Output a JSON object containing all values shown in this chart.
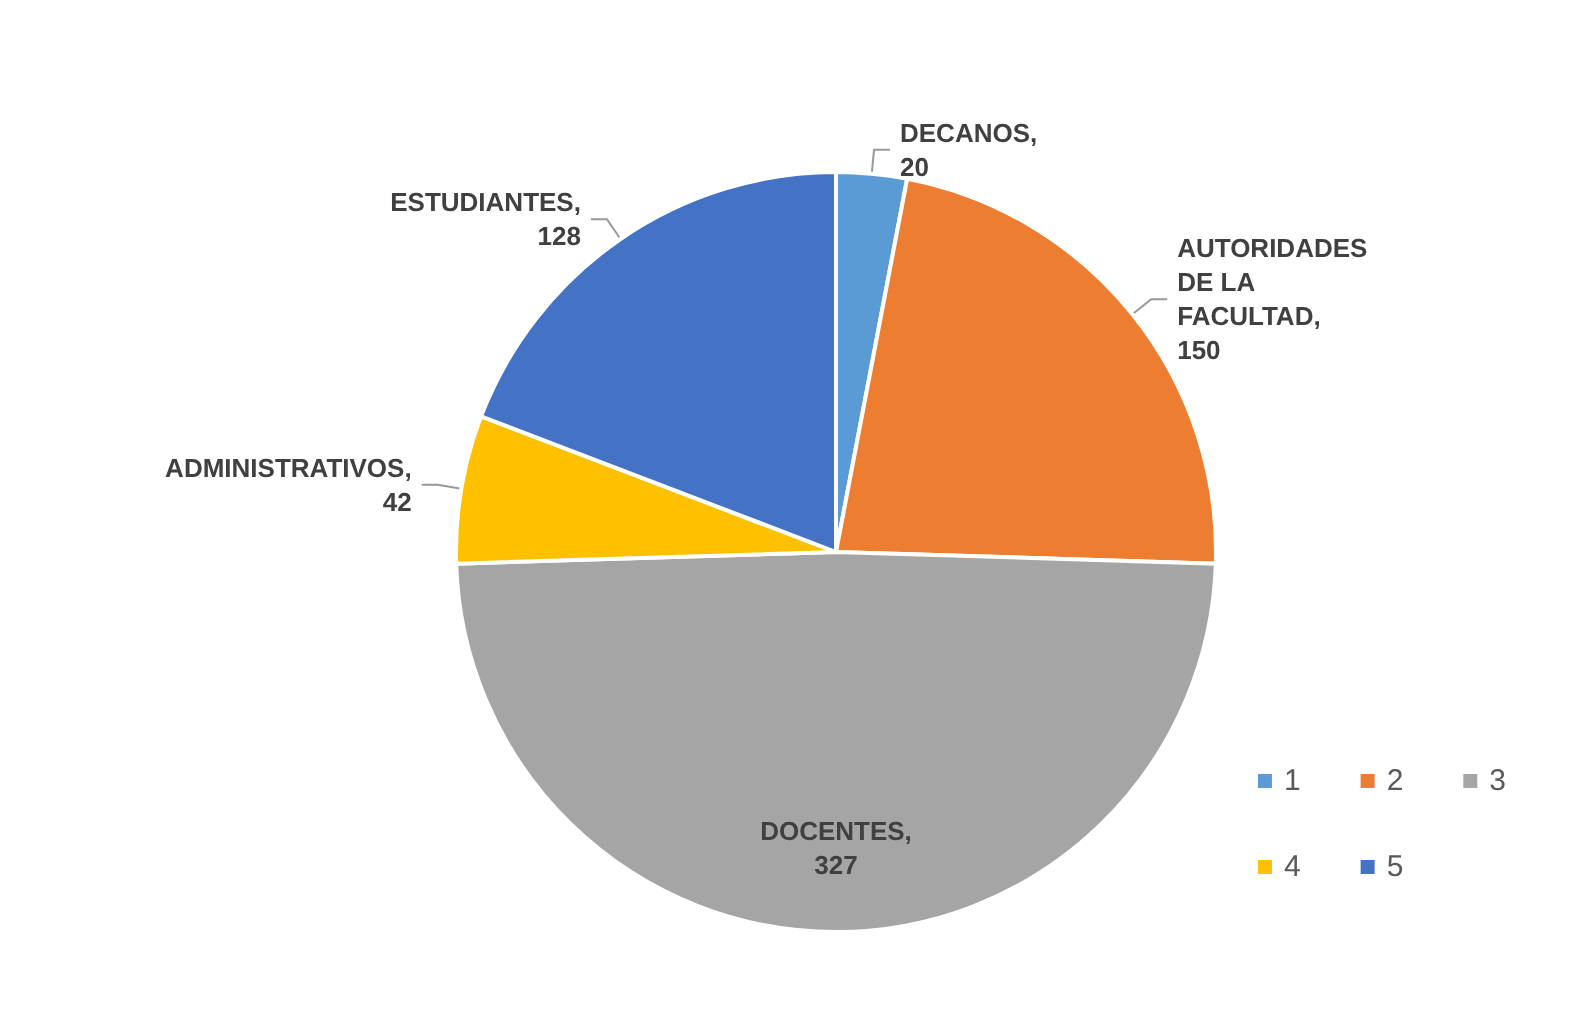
{
  "chart_data": {
    "type": "pie",
    "categories": [
      "1",
      "2",
      "3",
      "4",
      "5"
    ],
    "values": [
      20,
      150,
      327,
      42,
      128
    ],
    "colors": [
      "#5b9bd5",
      "#ed7d31",
      "#a5a5a5",
      "#ffc000",
      "#4472c4"
    ],
    "value_labels": [
      "DECANOS,\n20",
      "AUTORIDADES\nDE LA\nFACULTAD,\n150",
      "DOCENTES,\n327",
      "ADMINISTRATIVOS,\n42",
      "ESTUDIANTES,\n128"
    ],
    "legend": "bottom right"
  }
}
